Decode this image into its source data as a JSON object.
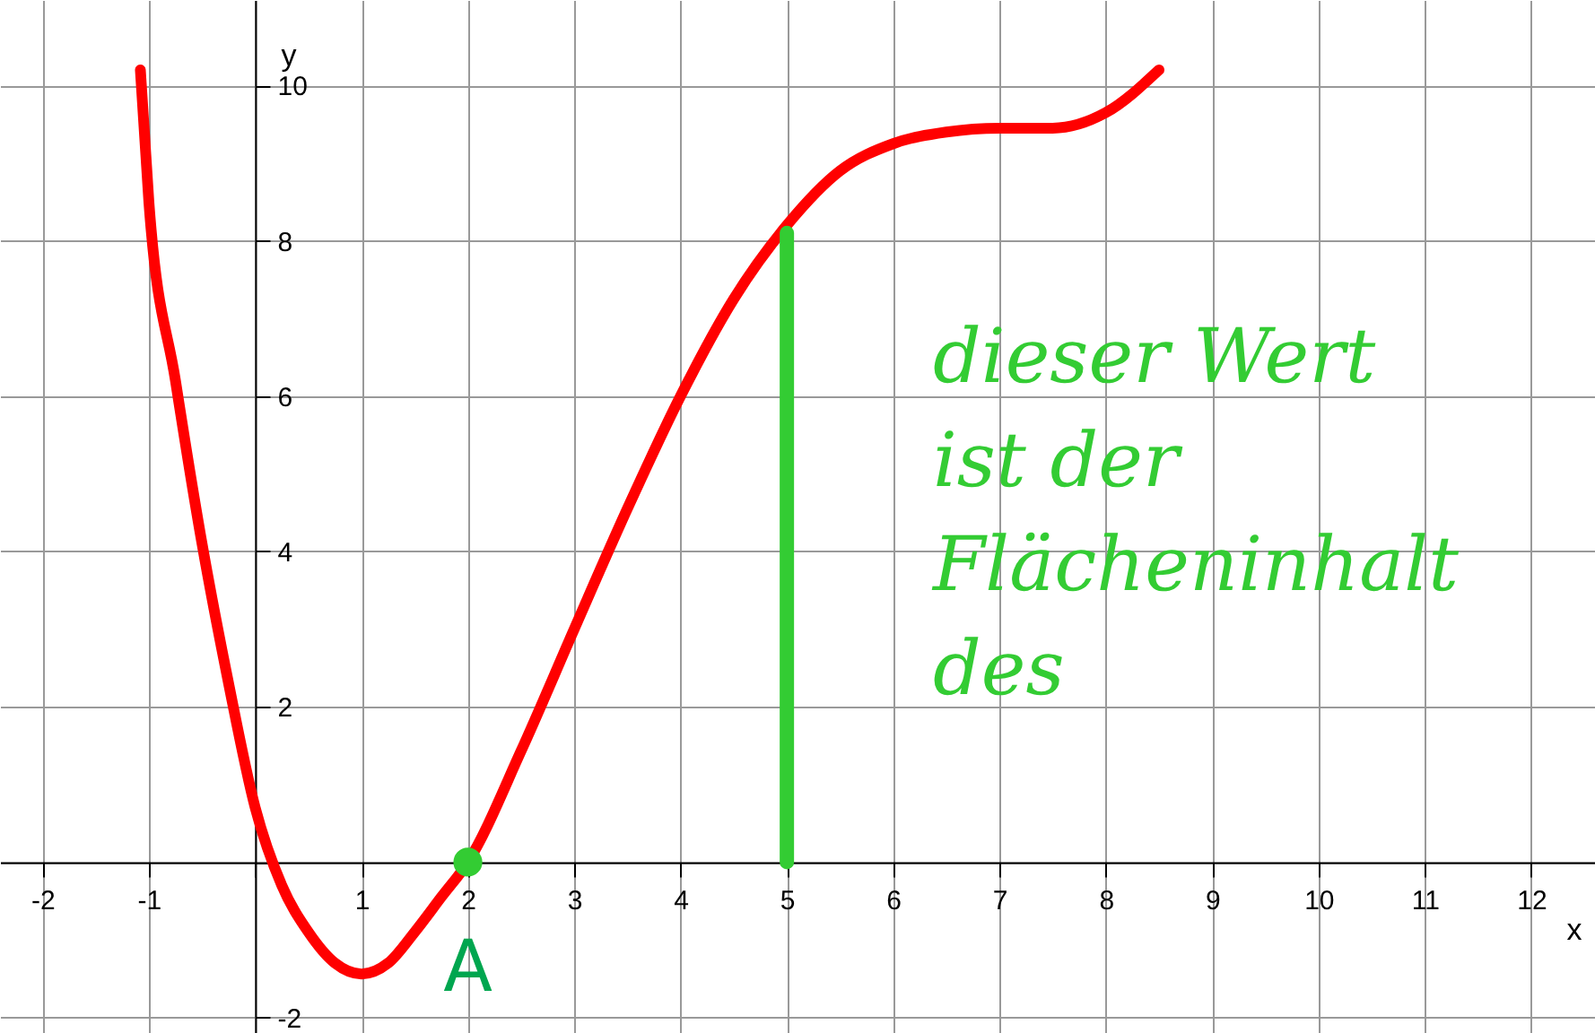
{
  "chart_data": {
    "type": "line",
    "xlabel": "x",
    "ylabel": "y",
    "xlim": [
      -2.4,
      12.6
    ],
    "ylim": [
      -2.2,
      11.1
    ],
    "xticks": [
      -2,
      -1,
      {
        "value": 0,
        "label": null
      },
      1,
      2,
      3,
      4,
      5,
      6,
      7,
      8,
      9,
      10,
      11,
      12
    ],
    "yticks": [
      -2,
      {
        "value": 0,
        "label": null
      },
      2,
      4,
      6,
      8,
      10
    ],
    "grid": true,
    "series": [
      {
        "color": "#ff0000",
        "x": [
          -1.08,
          -1,
          -0.75,
          -0.5,
          -0.25,
          0,
          0.25,
          0.5,
          0.75,
          1,
          1.25,
          1.5,
          1.75,
          2,
          2.5,
          3,
          3.5,
          4,
          4.5,
          5,
          5.5,
          6,
          6.5,
          7,
          7.5,
          8,
          8.5
        ],
        "values": [
          10.2,
          8.5,
          6.2,
          4.1,
          2.3,
          0.7,
          -0.3,
          -0.9,
          -1.3,
          -1.44,
          -1.3,
          -0.9,
          -0.45,
          0,
          1.43,
          3.0,
          4.55,
          6.0,
          7.25,
          8.2,
          8.9,
          9.25,
          9.4,
          9.45,
          9.45,
          9.65,
          10.2
        ]
      },
      {
        "color": "#33cc33",
        "x": [
          5,
          5
        ],
        "values": [
          0,
          8.1
        ]
      },
      {
        "type": "scatter",
        "color": "#33cc33",
        "x": [
          2
        ],
        "values": [
          0
        ]
      }
    ],
    "annotations": [
      {
        "text": "A",
        "x": 2,
        "y": 0
      },
      "dieser Wert ist der Flächeninhalt des"
    ]
  }
}
